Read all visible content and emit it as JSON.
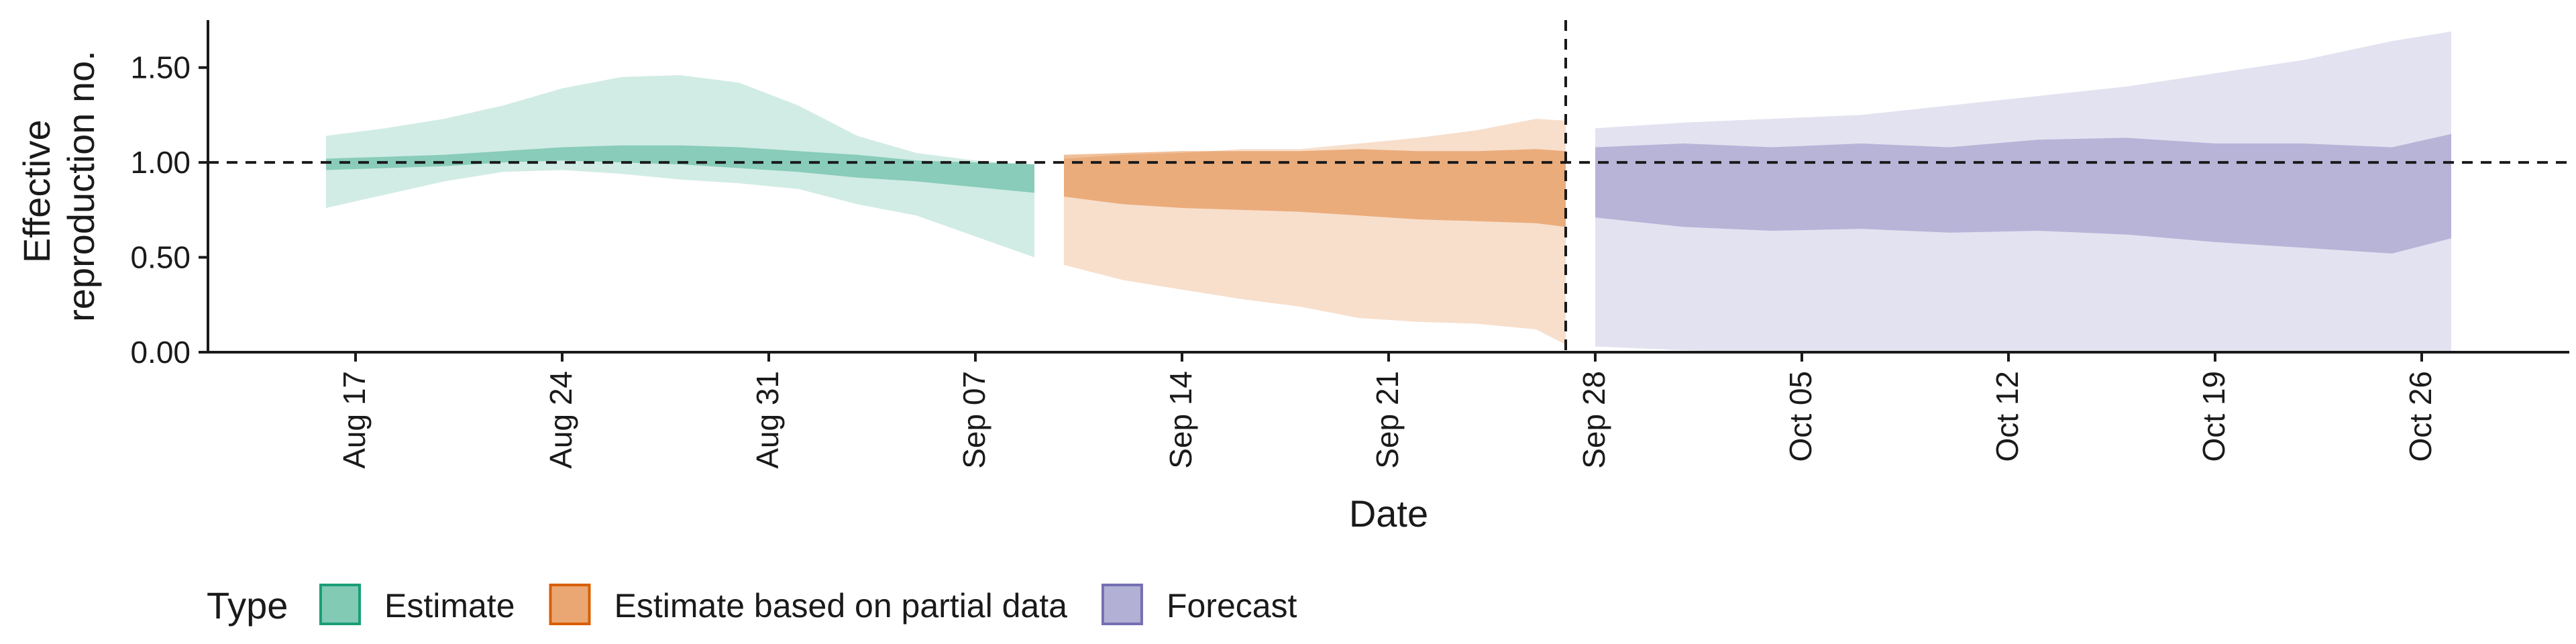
{
  "chart_data": {
    "type": "area",
    "xlabel": "Date",
    "ylabel_lines": [
      "Effective",
      "reproduction no."
    ],
    "ylim": [
      0,
      1.75
    ],
    "yticks": [
      0,
      0.5,
      1.0,
      1.5
    ],
    "ytick_labels": [
      "0.00",
      "0.50",
      "1.00",
      "1.50"
    ],
    "xlim": [
      "2020-08-12",
      "2020-10-31"
    ],
    "xticks": [
      "2020-08-17",
      "2020-08-24",
      "2020-08-31",
      "2020-09-07",
      "2020-09-14",
      "2020-09-21",
      "2020-09-28",
      "2020-10-05",
      "2020-10-12",
      "2020-10-19",
      "2020-10-26"
    ],
    "xtick_labels": [
      "Aug 17",
      "Aug 24",
      "Aug 31",
      "Sep 07",
      "Sep 14",
      "Sep 21",
      "Sep 28",
      "Oct 05",
      "Oct 12",
      "Oct 19",
      "Oct 26"
    ],
    "hline": 1.0,
    "vline": "2020-09-27",
    "legend": {
      "title": "Type",
      "position": "bottom-left",
      "entries": [
        "Estimate",
        "Estimate based on partial data",
        "Forecast"
      ]
    },
    "series": [
      {
        "name": "Estimate",
        "color": "#1b9e77",
        "x": [
          "2020-08-16",
          "2020-08-18",
          "2020-08-20",
          "2020-08-22",
          "2020-08-24",
          "2020-08-26",
          "2020-08-28",
          "2020-08-30",
          "2020-09-01",
          "2020-09-03",
          "2020-09-05",
          "2020-09-07",
          "2020-09-09"
        ],
        "outer_low": [
          0.76,
          0.83,
          0.9,
          0.95,
          0.96,
          0.94,
          0.91,
          0.89,
          0.86,
          0.78,
          0.72,
          0.61,
          0.5
        ],
        "outer_high": [
          1.14,
          1.18,
          1.23,
          1.3,
          1.39,
          1.45,
          1.46,
          1.42,
          1.3,
          1.14,
          1.05,
          1.01,
          0.99
        ],
        "inner_low": [
          0.96,
          0.97,
          0.98,
          1.0,
          1.01,
          1.0,
          0.99,
          0.97,
          0.95,
          0.92,
          0.9,
          0.87,
          0.84
        ],
        "inner_high": [
          1.02,
          1.03,
          1.04,
          1.06,
          1.08,
          1.09,
          1.09,
          1.08,
          1.06,
          1.04,
          1.01,
          1.0,
          0.99
        ]
      },
      {
        "name": "Estimate based on partial data",
        "color": "#d95f02",
        "x": [
          "2020-09-10",
          "2020-09-12",
          "2020-09-14",
          "2020-09-16",
          "2020-09-18",
          "2020-09-20",
          "2020-09-22",
          "2020-09-24",
          "2020-09-26",
          "2020-09-27"
        ],
        "outer_low": [
          0.46,
          0.38,
          0.33,
          0.28,
          0.24,
          0.18,
          0.16,
          0.15,
          0.12,
          0.04
        ],
        "outer_high": [
          1.02,
          1.04,
          1.05,
          1.07,
          1.07,
          1.1,
          1.13,
          1.17,
          1.23,
          1.22
        ],
        "inner_low": [
          0.82,
          0.78,
          0.76,
          0.75,
          0.74,
          0.72,
          0.7,
          0.69,
          0.68,
          0.66
        ],
        "inner_high": [
          1.04,
          1.05,
          1.06,
          1.06,
          1.06,
          1.07,
          1.06,
          1.06,
          1.07,
          1.06
        ]
      },
      {
        "name": "Forecast",
        "color": "#7570b3",
        "x": [
          "2020-09-28",
          "2020-10-01",
          "2020-10-04",
          "2020-10-07",
          "2020-10-10",
          "2020-10-13",
          "2020-10-16",
          "2020-10-19",
          "2020-10-22",
          "2020-10-25",
          "2020-10-27"
        ],
        "outer_low": [
          0.03,
          0.01,
          0.0,
          0.0,
          0.0,
          0.0,
          0.0,
          0.0,
          0.0,
          0.0,
          0.0
        ],
        "outer_high": [
          1.18,
          1.21,
          1.23,
          1.25,
          1.3,
          1.35,
          1.4,
          1.47,
          1.54,
          1.64,
          1.69
        ],
        "inner_low": [
          0.71,
          0.66,
          0.64,
          0.65,
          0.63,
          0.64,
          0.62,
          0.58,
          0.55,
          0.52,
          0.6
        ],
        "inner_high": [
          1.08,
          1.1,
          1.08,
          1.1,
          1.08,
          1.12,
          1.13,
          1.1,
          1.1,
          1.08,
          1.15
        ]
      }
    ]
  }
}
